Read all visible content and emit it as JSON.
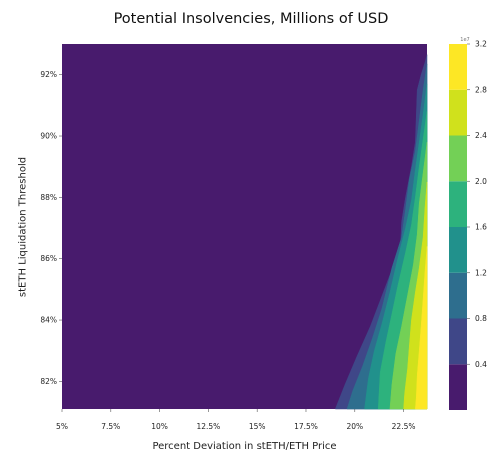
{
  "chart_data": {
    "type": "heatmap",
    "subtype": "filled-contour",
    "title": "Potential Insolvencies, Millions of USD",
    "xlabel": "Percent Deviation in stETH/ETH Price",
    "ylabel": "stETH Liquidation Threshold",
    "x_ticks": [
      "5%",
      "7.5%",
      "10%",
      "12.5%",
      "15%",
      "17.5%",
      "20%",
      "22.5%"
    ],
    "x_tick_values": [
      0.05,
      0.075,
      0.1,
      0.125,
      0.15,
      0.175,
      0.2,
      0.225
    ],
    "y_ticks": [
      "82%",
      "84%",
      "86%",
      "88%",
      "90%",
      "92%"
    ],
    "y_tick_values": [
      0.82,
      0.84,
      0.86,
      0.88,
      0.9,
      0.92
    ],
    "xlim": [
      0.05,
      0.237
    ],
    "ylim": [
      0.811,
      0.93
    ],
    "colorbar": {
      "ticks": [
        "0.4",
        "0.8",
        "1.2",
        "1.6",
        "2.0",
        "2.4",
        "2.8",
        "3.2"
      ],
      "tick_values": [
        0.4,
        0.8,
        1.2,
        1.6,
        2.0,
        2.4,
        2.8,
        3.2
      ],
      "scale_label": "1e7",
      "levels": [
        0.0,
        0.4,
        0.8,
        1.2,
        1.6,
        2.0,
        2.4,
        2.8,
        3.2
      ],
      "colors": [
        "#481b6d",
        "#3f4788",
        "#2e6e8e",
        "#21918c",
        "#2db27d",
        "#73d056",
        "#d0e11c",
        "#fde725"
      ]
    },
    "contour_boundaries": [
      {
        "level": 0.4,
        "points": [
          [
            0.237,
            0.9265
          ],
          [
            0.236,
            0.924
          ],
          [
            0.234,
            0.92
          ],
          [
            0.232,
            0.915
          ],
          [
            0.231,
            0.898
          ],
          [
            0.229,
            0.89
          ],
          [
            0.226,
            0.88
          ],
          [
            0.224,
            0.872
          ],
          [
            0.2235,
            0.865
          ],
          [
            0.22,
            0.858
          ],
          [
            0.214,
            0.848
          ],
          [
            0.208,
            0.838
          ],
          [
            0.201,
            0.828
          ],
          [
            0.195,
            0.819
          ],
          [
            0.19,
            0.811
          ]
        ]
      },
      {
        "level": 0.8,
        "points": [
          [
            0.237,
            0.9235
          ],
          [
            0.235,
            0.915
          ],
          [
            0.233,
            0.905
          ],
          [
            0.231,
            0.895
          ],
          [
            0.228,
            0.886
          ],
          [
            0.226,
            0.876
          ],
          [
            0.224,
            0.867
          ],
          [
            0.219,
            0.857
          ],
          [
            0.214,
            0.844
          ],
          [
            0.209,
            0.834
          ],
          [
            0.204,
            0.825
          ],
          [
            0.199,
            0.817
          ],
          [
            0.196,
            0.811
          ]
        ]
      },
      {
        "level": 1.2,
        "points": [
          [
            0.237,
            0.917
          ],
          [
            0.235,
            0.907
          ],
          [
            0.233,
            0.898
          ],
          [
            0.231,
            0.889
          ],
          [
            0.229,
            0.879
          ],
          [
            0.226,
            0.87
          ],
          [
            0.222,
            0.86
          ],
          [
            0.218,
            0.849
          ],
          [
            0.214,
            0.839
          ],
          [
            0.21,
            0.83
          ],
          [
            0.207,
            0.821
          ],
          [
            0.205,
            0.811
          ]
        ]
      },
      {
        "level": 1.6,
        "points": [
          [
            0.237,
            0.908
          ],
          [
            0.235,
            0.899
          ],
          [
            0.233,
            0.89
          ],
          [
            0.231,
            0.88
          ],
          [
            0.229,
            0.871
          ],
          [
            0.226,
            0.862
          ],
          [
            0.222,
            0.851
          ],
          [
            0.219,
            0.842
          ],
          [
            0.216,
            0.833
          ],
          [
            0.213,
            0.823
          ],
          [
            0.212,
            0.811
          ]
        ]
      },
      {
        "level": 2.0,
        "points": [
          [
            0.237,
            0.898
          ],
          [
            0.235,
            0.888
          ],
          [
            0.233,
            0.878
          ],
          [
            0.232,
            0.868
          ],
          [
            0.23,
            0.858
          ],
          [
            0.227,
            0.848
          ],
          [
            0.224,
            0.838
          ],
          [
            0.221,
            0.829
          ],
          [
            0.219,
            0.819
          ],
          [
            0.218,
            0.811
          ]
        ]
      },
      {
        "level": 2.4,
        "points": [
          [
            0.237,
            0.885
          ],
          [
            0.236,
            0.877
          ],
          [
            0.235,
            0.867
          ],
          [
            0.233,
            0.857
          ],
          [
            0.231,
            0.849
          ],
          [
            0.229,
            0.84
          ],
          [
            0.228,
            0.832
          ],
          [
            0.227,
            0.824
          ],
          [
            0.2255,
            0.816
          ],
          [
            0.225,
            0.811
          ]
        ]
      },
      {
        "level": 2.8,
        "points": [
          [
            0.237,
            0.864
          ],
          [
            0.236,
            0.856
          ],
          [
            0.235,
            0.847
          ],
          [
            0.234,
            0.838
          ],
          [
            0.233,
            0.83
          ],
          [
            0.232,
            0.822
          ],
          [
            0.2315,
            0.815
          ],
          [
            0.231,
            0.811
          ]
        ]
      }
    ],
    "grid": false,
    "legend": "colorbar-right"
  }
}
